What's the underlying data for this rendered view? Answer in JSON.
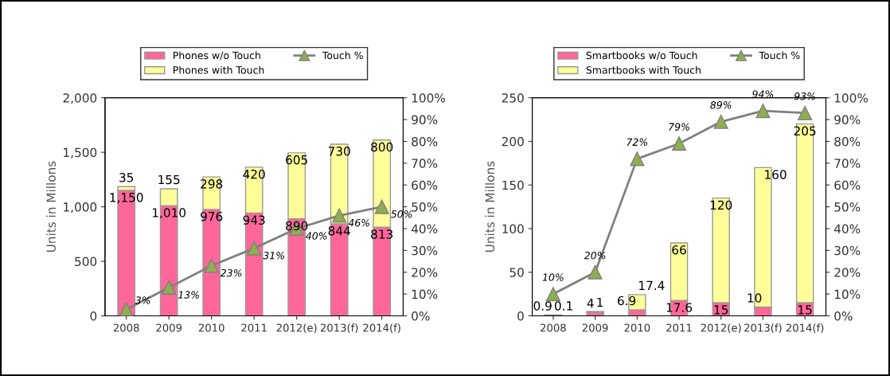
{
  "chart_data": [
    {
      "type": "bar",
      "stacked": true,
      "ylabel": "Units in Millons",
      "categories": [
        "2008",
        "2009",
        "2010",
        "2011",
        "2012(e)",
        "2013(f)",
        "2014(f)"
      ],
      "ylim": [
        0,
        2000
      ],
      "yticks": [
        0,
        500,
        {
          "value": 1000,
          "label": "1,000"
        },
        {
          "value": 1500,
          "label": "1,500"
        },
        {
          "value": 2000,
          "label": "2,000"
        }
      ],
      "y2lim": [
        0,
        100
      ],
      "y2ticks": [
        {
          "value": 0,
          "label": "0%"
        },
        {
          "value": 10,
          "label": "10%"
        },
        {
          "value": 20,
          "label": "20%"
        },
        {
          "value": 30,
          "label": "30%"
        },
        {
          "value": 40,
          "label": "40%"
        },
        {
          "value": 50,
          "label": "50%"
        },
        {
          "value": 60,
          "label": "60%"
        },
        {
          "value": 70,
          "label": "70%"
        },
        {
          "value": 80,
          "label": "80%"
        },
        {
          "value": 90,
          "label": "90%"
        },
        {
          "value": 100,
          "label": "100%"
        }
      ],
      "legend": "top",
      "grid": false,
      "series": [
        {
          "name": "Phones w/o Touch",
          "color": "#ff6699",
          "values": [
            1150,
            1010,
            976,
            943,
            890,
            844,
            813
          ],
          "value_labels": [
            "1,150",
            "1,010",
            "976",
            "943",
            "890",
            "844",
            "813"
          ]
        },
        {
          "name": "Phones with Touch",
          "color": "#ffff99",
          "values": [
            35,
            155,
            298,
            420,
            605,
            730,
            800
          ],
          "value_labels": [
            "35",
            "155",
            "298",
            "420",
            "605",
            "730",
            "800"
          ]
        },
        {
          "name": "Touch %",
          "type": "line",
          "axis": "y2",
          "color": "#808080",
          "marker": "triangle",
          "values": [
            3,
            13,
            23,
            31,
            40,
            46,
            50
          ],
          "value_labels": [
            "3%",
            "13%",
            "23%",
            "31%",
            "40%",
            "46%",
            "50%"
          ]
        }
      ]
    },
    {
      "type": "bar",
      "stacked": true,
      "ylabel": "Units in Millons",
      "categories": [
        "2008",
        "2009",
        "2010",
        "2011",
        "2012(e)",
        "2013(f)",
        "2014(f)"
      ],
      "ylim": [
        0,
        250
      ],
      "yticks": [
        0,
        50,
        100,
        150,
        200,
        250
      ],
      "y2lim": [
        0,
        100
      ],
      "y2ticks": [
        {
          "value": 0,
          "label": "0%"
        },
        {
          "value": 10,
          "label": "10%"
        },
        {
          "value": 20,
          "label": "20%"
        },
        {
          "value": 30,
          "label": "30%"
        },
        {
          "value": 40,
          "label": "40%"
        },
        {
          "value": 50,
          "label": "50%"
        },
        {
          "value": 60,
          "label": "60%"
        },
        {
          "value": 70,
          "label": "70%"
        },
        {
          "value": 80,
          "label": "80%"
        },
        {
          "value": 90,
          "label": "90%"
        },
        {
          "value": 100,
          "label": "100%"
        }
      ],
      "legend": "top",
      "grid": false,
      "series": [
        {
          "name": "Smartbooks w/o Touch",
          "color": "#ff6699",
          "values": [
            0.9,
            4,
            6.9,
            17.6,
            15,
            10,
            15
          ],
          "value_labels": [
            "0.9",
            "4",
            "6.9",
            "17.6",
            "15",
            "10",
            "15"
          ]
        },
        {
          "name": "Smartbooks with Touch",
          "color": "#ffff99",
          "values": [
            0.1,
            1,
            17.4,
            66,
            120,
            160,
            205
          ],
          "value_labels": [
            "0.1",
            "1",
            "17.4",
            "66",
            "120",
            "160",
            "205"
          ]
        },
        {
          "name": "Touch %",
          "type": "line",
          "axis": "y2",
          "color": "#808080",
          "marker": "triangle",
          "values": [
            10,
            20,
            72,
            79,
            89,
            94,
            93
          ],
          "value_labels": [
            "10%",
            "20%",
            "72%",
            "79%",
            "89%",
            "94%",
            "93%"
          ]
        }
      ]
    }
  ]
}
